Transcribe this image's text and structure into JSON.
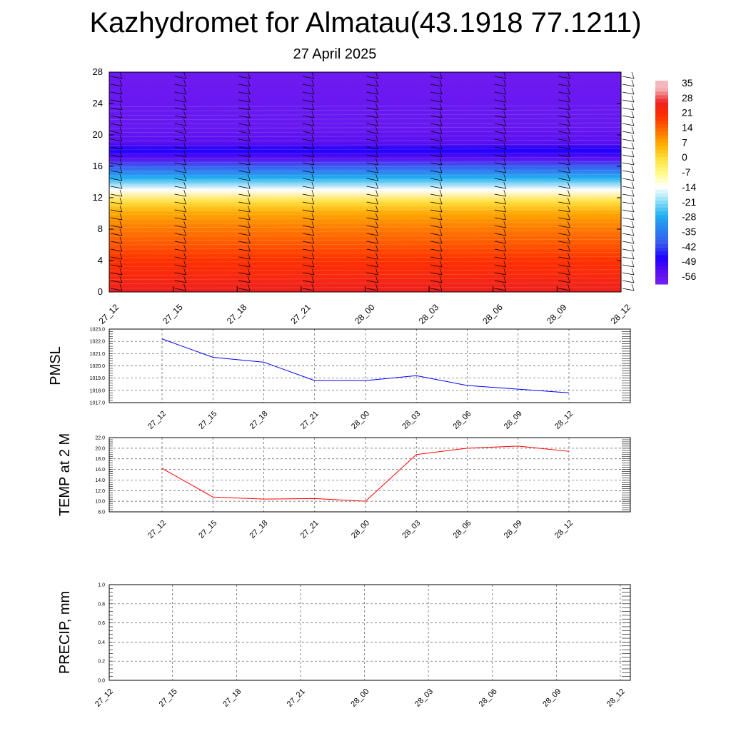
{
  "title": "Kazhydromet for Almatau(43.1918 77.1211)",
  "subtitle": "27 April 2025",
  "x_ticks": [
    "27_12",
    "27_15",
    "27_18",
    "27_21",
    "28_00",
    "28_03",
    "28_06",
    "28_09",
    "28_12"
  ],
  "chart_data": [
    {
      "type": "heatmap",
      "title": "",
      "ylabel": "",
      "y_ticks": [
        "0",
        "4",
        "8",
        "12",
        "16",
        "20",
        "24",
        "28"
      ],
      "ylim": [
        0,
        28
      ],
      "colorbar_labels": [
        "35",
        "28",
        "21",
        "14",
        "7",
        "0",
        "-7",
        "-14",
        "-21",
        "-28",
        "-35",
        "-42",
        "-49",
        "-56"
      ],
      "profile": {
        "altitude": [
          0,
          2,
          4,
          6,
          8,
          10,
          11.5,
          13,
          14.5,
          16,
          17,
          18,
          19,
          21,
          23,
          28
        ],
        "value": [
          28,
          24,
          21,
          17,
          13,
          8,
          0,
          -14,
          -28,
          -42,
          -56,
          -49,
          -56,
          -59,
          -59,
          -60
        ]
      },
      "colors": {
        "warm": "#ff1a00",
        "neutral": "#fffb88",
        "cold": "#1e00ff",
        "top": "#7b22f0"
      }
    },
    {
      "type": "line",
      "ylabel": "PMSL",
      "ylim": [
        1017.0,
        1023.0
      ],
      "y_ticks": [
        "1017.0",
        "1018.0",
        "1019.0",
        "1020.0",
        "1021.0",
        "1022.0",
        "1023.0"
      ],
      "x": [
        "27_12",
        "27_15",
        "27_18",
        "27_21",
        "28_00",
        "28_03",
        "28_06",
        "28_09",
        "28_12"
      ],
      "series": [
        {
          "values": [
            1022.2,
            1020.7,
            1020.3,
            1018.8,
            1018.8,
            1019.2,
            1018.4,
            1018.1,
            1017.8
          ],
          "color": "#0000ff"
        }
      ]
    },
    {
      "type": "line",
      "ylabel": "TEMP at 2 M",
      "ylim": [
        8.0,
        22.0
      ],
      "y_ticks": [
        "8.0",
        "10.0",
        "12.0",
        "14.0",
        "16.0",
        "18.0",
        "20.0",
        "22.0"
      ],
      "x": [
        "27_12",
        "27_15",
        "27_18",
        "27_21",
        "28_00",
        "28_03",
        "28_06",
        "28_09",
        "28_12"
      ],
      "series": [
        {
          "values": [
            16.2,
            10.8,
            10.4,
            10.5,
            10.0,
            18.8,
            20.0,
            20.4,
            19.4
          ],
          "color": "#ff0000"
        }
      ]
    },
    {
      "type": "line",
      "ylabel": "PRECIP, mm",
      "ylim": [
        0.0,
        1.0
      ],
      "y_ticks": [
        "0.0",
        "0.2",
        "0.4",
        "0.6",
        "0.8",
        "1.0"
      ],
      "x": [
        "27_12",
        "27_15",
        "27_18",
        "27_21",
        "28_00",
        "28_03",
        "28_06",
        "28_09",
        "28_12"
      ],
      "series": [
        {
          "values": [
            0,
            0,
            0,
            0,
            0,
            0,
            0,
            0,
            0
          ],
          "color": "#006400"
        }
      ]
    }
  ]
}
